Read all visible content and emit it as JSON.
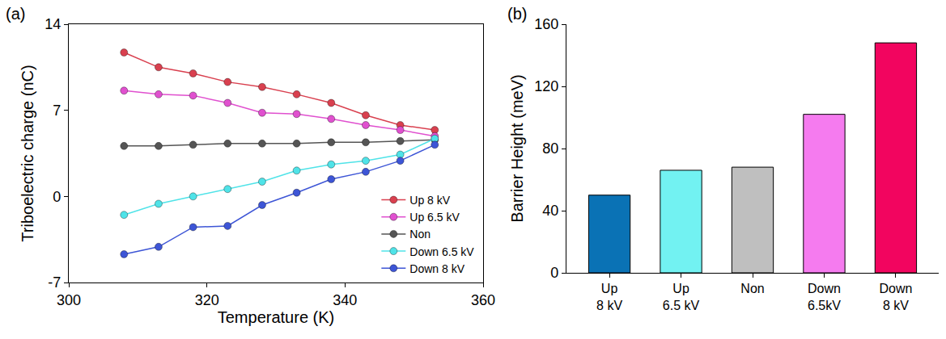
{
  "chart_data": [
    {
      "type": "line",
      "title": "(a)",
      "xlabel": "Temperature (K)",
      "ylabel": "Triboelectric charge (nC)",
      "x": [
        308,
        313,
        318,
        323,
        328,
        333,
        338,
        343,
        348,
        353
      ],
      "series": [
        {
          "name": "Up 8 kV",
          "color": "#d9404f",
          "values": [
            11.7,
            10.5,
            10.0,
            9.3,
            8.9,
            8.3,
            7.6,
            6.6,
            5.8,
            5.4
          ]
        },
        {
          "name": "Up 6.5 kV",
          "color": "#e050cf",
          "values": [
            8.6,
            8.3,
            8.2,
            7.6,
            6.8,
            6.7,
            6.3,
            5.8,
            5.4,
            4.9
          ]
        },
        {
          "name": "Non",
          "color": "#555555",
          "values": [
            4.1,
            4.1,
            4.2,
            4.3,
            4.3,
            4.3,
            4.4,
            4.4,
            4.5,
            4.6
          ]
        },
        {
          "name": "Down 6.5 kV",
          "color": "#4fe3e8",
          "values": [
            -1.5,
            -0.6,
            0.0,
            0.6,
            1.2,
            2.1,
            2.6,
            2.9,
            3.4,
            4.7
          ]
        },
        {
          "name": "Down 8 kV",
          "color": "#3d55d6",
          "values": [
            -4.7,
            -4.1,
            -2.5,
            -2.4,
            -0.7,
            0.3,
            1.4,
            2.0,
            2.9,
            4.2
          ]
        }
      ],
      "xlim": [
        300,
        360
      ],
      "xticks": [
        300,
        320,
        340,
        360
      ],
      "ylim": [
        -7,
        14
      ],
      "yticks": [
        -7,
        0,
        7,
        14
      ],
      "legend": "lower right",
      "grid": false,
      "marker": "circle",
      "line_style": "solid"
    },
    {
      "type": "bar",
      "title": "(b)",
      "ylabel": "Barrier Height (meV)",
      "categories": [
        "Up\n8 kV",
        "Up\n6.5 kV",
        "Non",
        "Down\n6.5kV",
        "Down\n8 kV"
      ],
      "values": [
        50,
        66,
        68,
        102,
        148
      ],
      "colors": [
        "#0a72b5",
        "#72f2f2",
        "#bfbfbf",
        "#f57bef",
        "#f2055f"
      ],
      "ylim": [
        0,
        160
      ],
      "yticks": [
        0,
        40,
        80,
        120,
        160
      ],
      "grid": false
    }
  ]
}
